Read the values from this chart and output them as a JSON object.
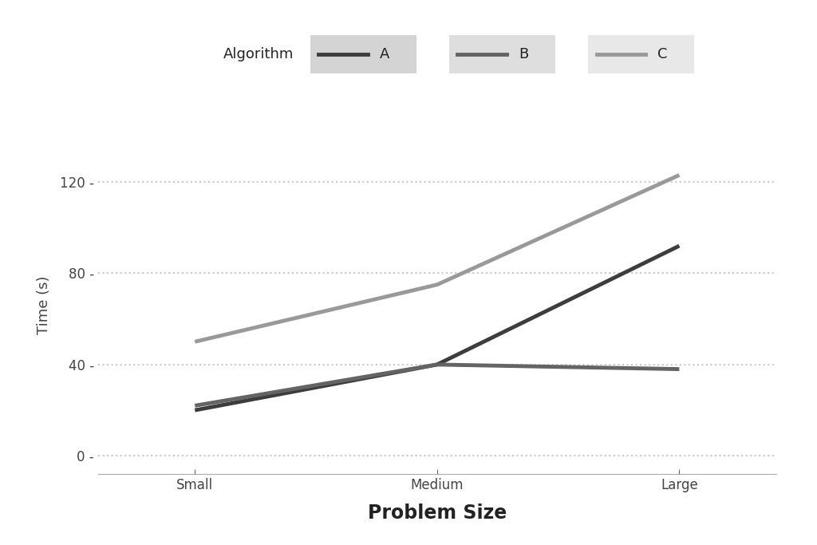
{
  "x_labels": [
    "Small",
    "Medium",
    "Large"
  ],
  "x_values": [
    1,
    2,
    3
  ],
  "series": [
    {
      "name": "A",
      "values": [
        20,
        40,
        92
      ],
      "color": "#3d3d3d",
      "linewidth": 3.5
    },
    {
      "name": "B",
      "values": [
        22,
        40,
        38
      ],
      "color": "#646464",
      "linewidth": 3.5
    },
    {
      "name": "C",
      "values": [
        50,
        75,
        123
      ],
      "color": "#999999",
      "linewidth": 3.5
    }
  ],
  "xlabel": "Problem Size",
  "ylabel": "Time (s)",
  "legend_title": "Algorithm",
  "ylim": [
    -8,
    140
  ],
  "xlim": [
    0.6,
    3.4
  ],
  "yticks": [
    0,
    40,
    80,
    120
  ],
  "background_color": "#ffffff",
  "panel_background": "#ffffff",
  "grid_color": "#c8c8c8",
  "legend_item_bg_colors": [
    "#d9d9d9",
    "#e3e3e3",
    "#ebebeb"
  ],
  "xlabel_fontsize": 17,
  "ylabel_fontsize": 13,
  "tick_fontsize": 12,
  "legend_fontsize": 13,
  "legend_title_fontsize": 13
}
